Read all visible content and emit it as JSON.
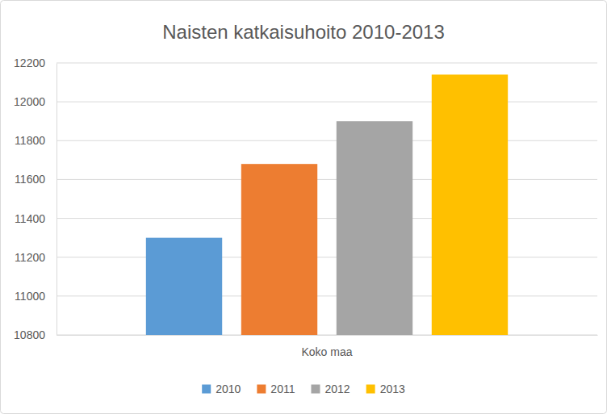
{
  "chart_data": {
    "type": "bar",
    "title": "Naisten katkaisuhoito 2010-2013",
    "categories": [
      "Koko maa"
    ],
    "series": [
      {
        "name": "2010",
        "color": "#5b9bd5",
        "values": [
          11300
        ]
      },
      {
        "name": "2011",
        "color": "#ed7d31",
        "values": [
          11680
        ]
      },
      {
        "name": "2012",
        "color": "#a5a5a5",
        "values": [
          11900
        ]
      },
      {
        "name": "2013",
        "color": "#ffc000",
        "values": [
          12140
        ]
      }
    ],
    "ylim": [
      10800,
      12200
    ],
    "yticks": [
      10800,
      11000,
      11200,
      11400,
      11600,
      11800,
      12000,
      12200
    ],
    "grid": true,
    "legend": "bottom"
  }
}
